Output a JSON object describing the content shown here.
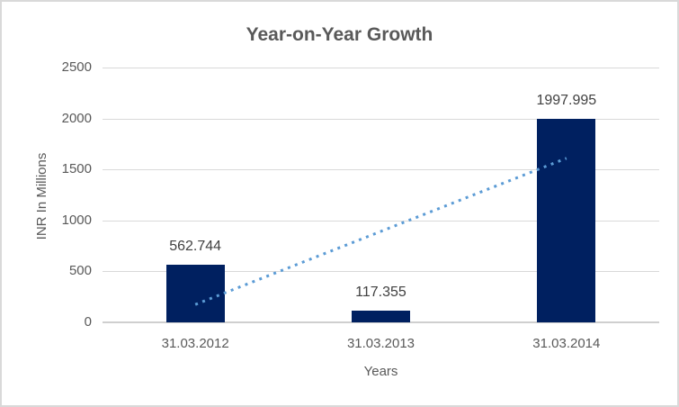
{
  "chart_data": {
    "type": "bar",
    "title": "Year-on-Year Growth",
    "categories": [
      "31.03.2012",
      "31.03.2013",
      "31.03.2014"
    ],
    "values": [
      562.744,
      117.355,
      1997.995
    ],
    "data_labels": [
      "562.744",
      "117.355",
      "1997.995"
    ],
    "xlabel": "Years",
    "ylabel": "INR In Millions",
    "ylim": [
      0,
      2500
    ],
    "yticks": [
      0,
      500,
      1000,
      1500,
      2000,
      2500
    ],
    "grid": "horizontal",
    "legend": "none",
    "trendline": {
      "type": "linear",
      "style": "dotted",
      "start_value": 175,
      "end_value": 1610
    },
    "colors": {
      "bar": "#002060",
      "trendline": "#5b9bd5",
      "gridline": "#d9d9d9",
      "axis_line": "#cfcfcf",
      "title_text": "#595959",
      "tick_text": "#595959",
      "data_label_text": "#404040",
      "border": "#d9d9d9",
      "background": "#ffffff"
    }
  }
}
